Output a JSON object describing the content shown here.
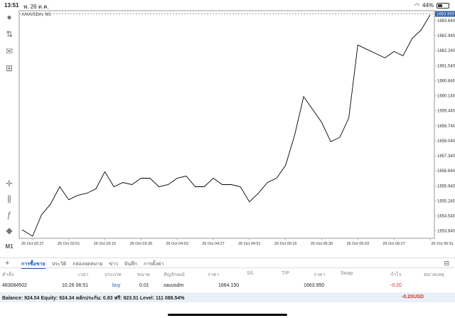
{
  "status": {
    "time": "13:51",
    "date": "พ. 26 ต.ค.",
    "battery": "44%",
    "battery_level": 0.44
  },
  "toolbar": {
    "timeframe": "M1"
  },
  "chart": {
    "symbol_label": "XAUUSDm, M1",
    "current_price": "1663.950",
    "y_labels": [
      "1663.640",
      "1662.940",
      "1662.240",
      "1661.540",
      "1660.840",
      "1660.140",
      "1659.440",
      "1658.740",
      "1658.040",
      "1657.340",
      "1656.640",
      "1655.940",
      "1655.240",
      "1654.540",
      "1653.840"
    ],
    "x_labels": [
      "26 Oct 02:27",
      "26 Oct 02:51",
      "26 Oct 03:15",
      "26 Oct 03:39",
      "26 Oct 04:03",
      "26 Oct 04:27",
      "26 Oct 04:51",
      "26 Oct 05:15",
      "26 Oct 05:39",
      "26 Oct 06:03",
      "26 Oct 06:27",
      "26 Oct 06:51"
    ]
  },
  "chart_data": {
    "type": "line",
    "x": [
      "02:20",
      "02:27",
      "02:33",
      "02:39",
      "02:45",
      "02:51",
      "02:57",
      "03:03",
      "03:09",
      "03:15",
      "03:21",
      "03:27",
      "03:33",
      "03:39",
      "03:45",
      "03:51",
      "03:57",
      "04:03",
      "04:09",
      "04:15",
      "04:21",
      "04:27",
      "04:33",
      "04:39",
      "04:45",
      "04:51",
      "04:57",
      "05:03",
      "05:09",
      "05:15",
      "05:21",
      "05:27",
      "05:33",
      "05:39",
      "05:45",
      "05:51",
      "05:57",
      "06:03",
      "06:09",
      "06:15",
      "06:21",
      "06:27",
      "06:33",
      "06:39",
      "06:45",
      "06:51"
    ],
    "series": [
      {
        "values": [
          1653.9,
          1653.6,
          1654.6,
          1655.1,
          1655.9,
          1655.3,
          1655.5,
          1655.6,
          1655.8,
          1656.6,
          1655.9,
          1656.1,
          1656.0,
          1656.3,
          1656.3,
          1655.9,
          1656.0,
          1656.3,
          1656.4,
          1655.9,
          1655.9,
          1656.3,
          1656.0,
          1656.0,
          1655.9,
          1655.2,
          1655.6,
          1656.1,
          1656.3,
          1656.9,
          1658.3,
          1660.1,
          1659.5,
          1658.9,
          1658.0,
          1658.2,
          1659.1,
          1662.5,
          1662.3,
          1662.1,
          1661.9,
          1662.2,
          1662.0,
          1662.8,
          1663.2,
          1663.9
        ]
      }
    ],
    "ylim": [
      1653.5,
      1664.1
    ]
  },
  "bottom_tabs": [
    "การซื้อขาย",
    "ประวัติ",
    "กล่องจดหมาย",
    "ข่าว",
    "บันทึก",
    "การตั้งค่า"
  ],
  "columns": [
    "คำสั่ง",
    "เวลา",
    "ประเภท",
    "ขนาด",
    "สัญลักษณ์",
    "ราคา",
    "S/L",
    "T/P",
    "ราคา",
    "Swap",
    "กำไร",
    "หมายเหตุ"
  ],
  "order": {
    "id": "483084502",
    "time": "10.26 06:51",
    "type": "buy",
    "size": "0.01",
    "symbol": "xauusdm",
    "open_price": "1664.150",
    "current_price": "1663.950",
    "profit": "-0.20"
  },
  "balance": {
    "text": "Balance: 924.54 Equity: 924.34 หลักประกัน: 0.83 ฟรี: 923.51 Level: 111 088.54%",
    "profit": "-0.20",
    "currency": "USD"
  }
}
